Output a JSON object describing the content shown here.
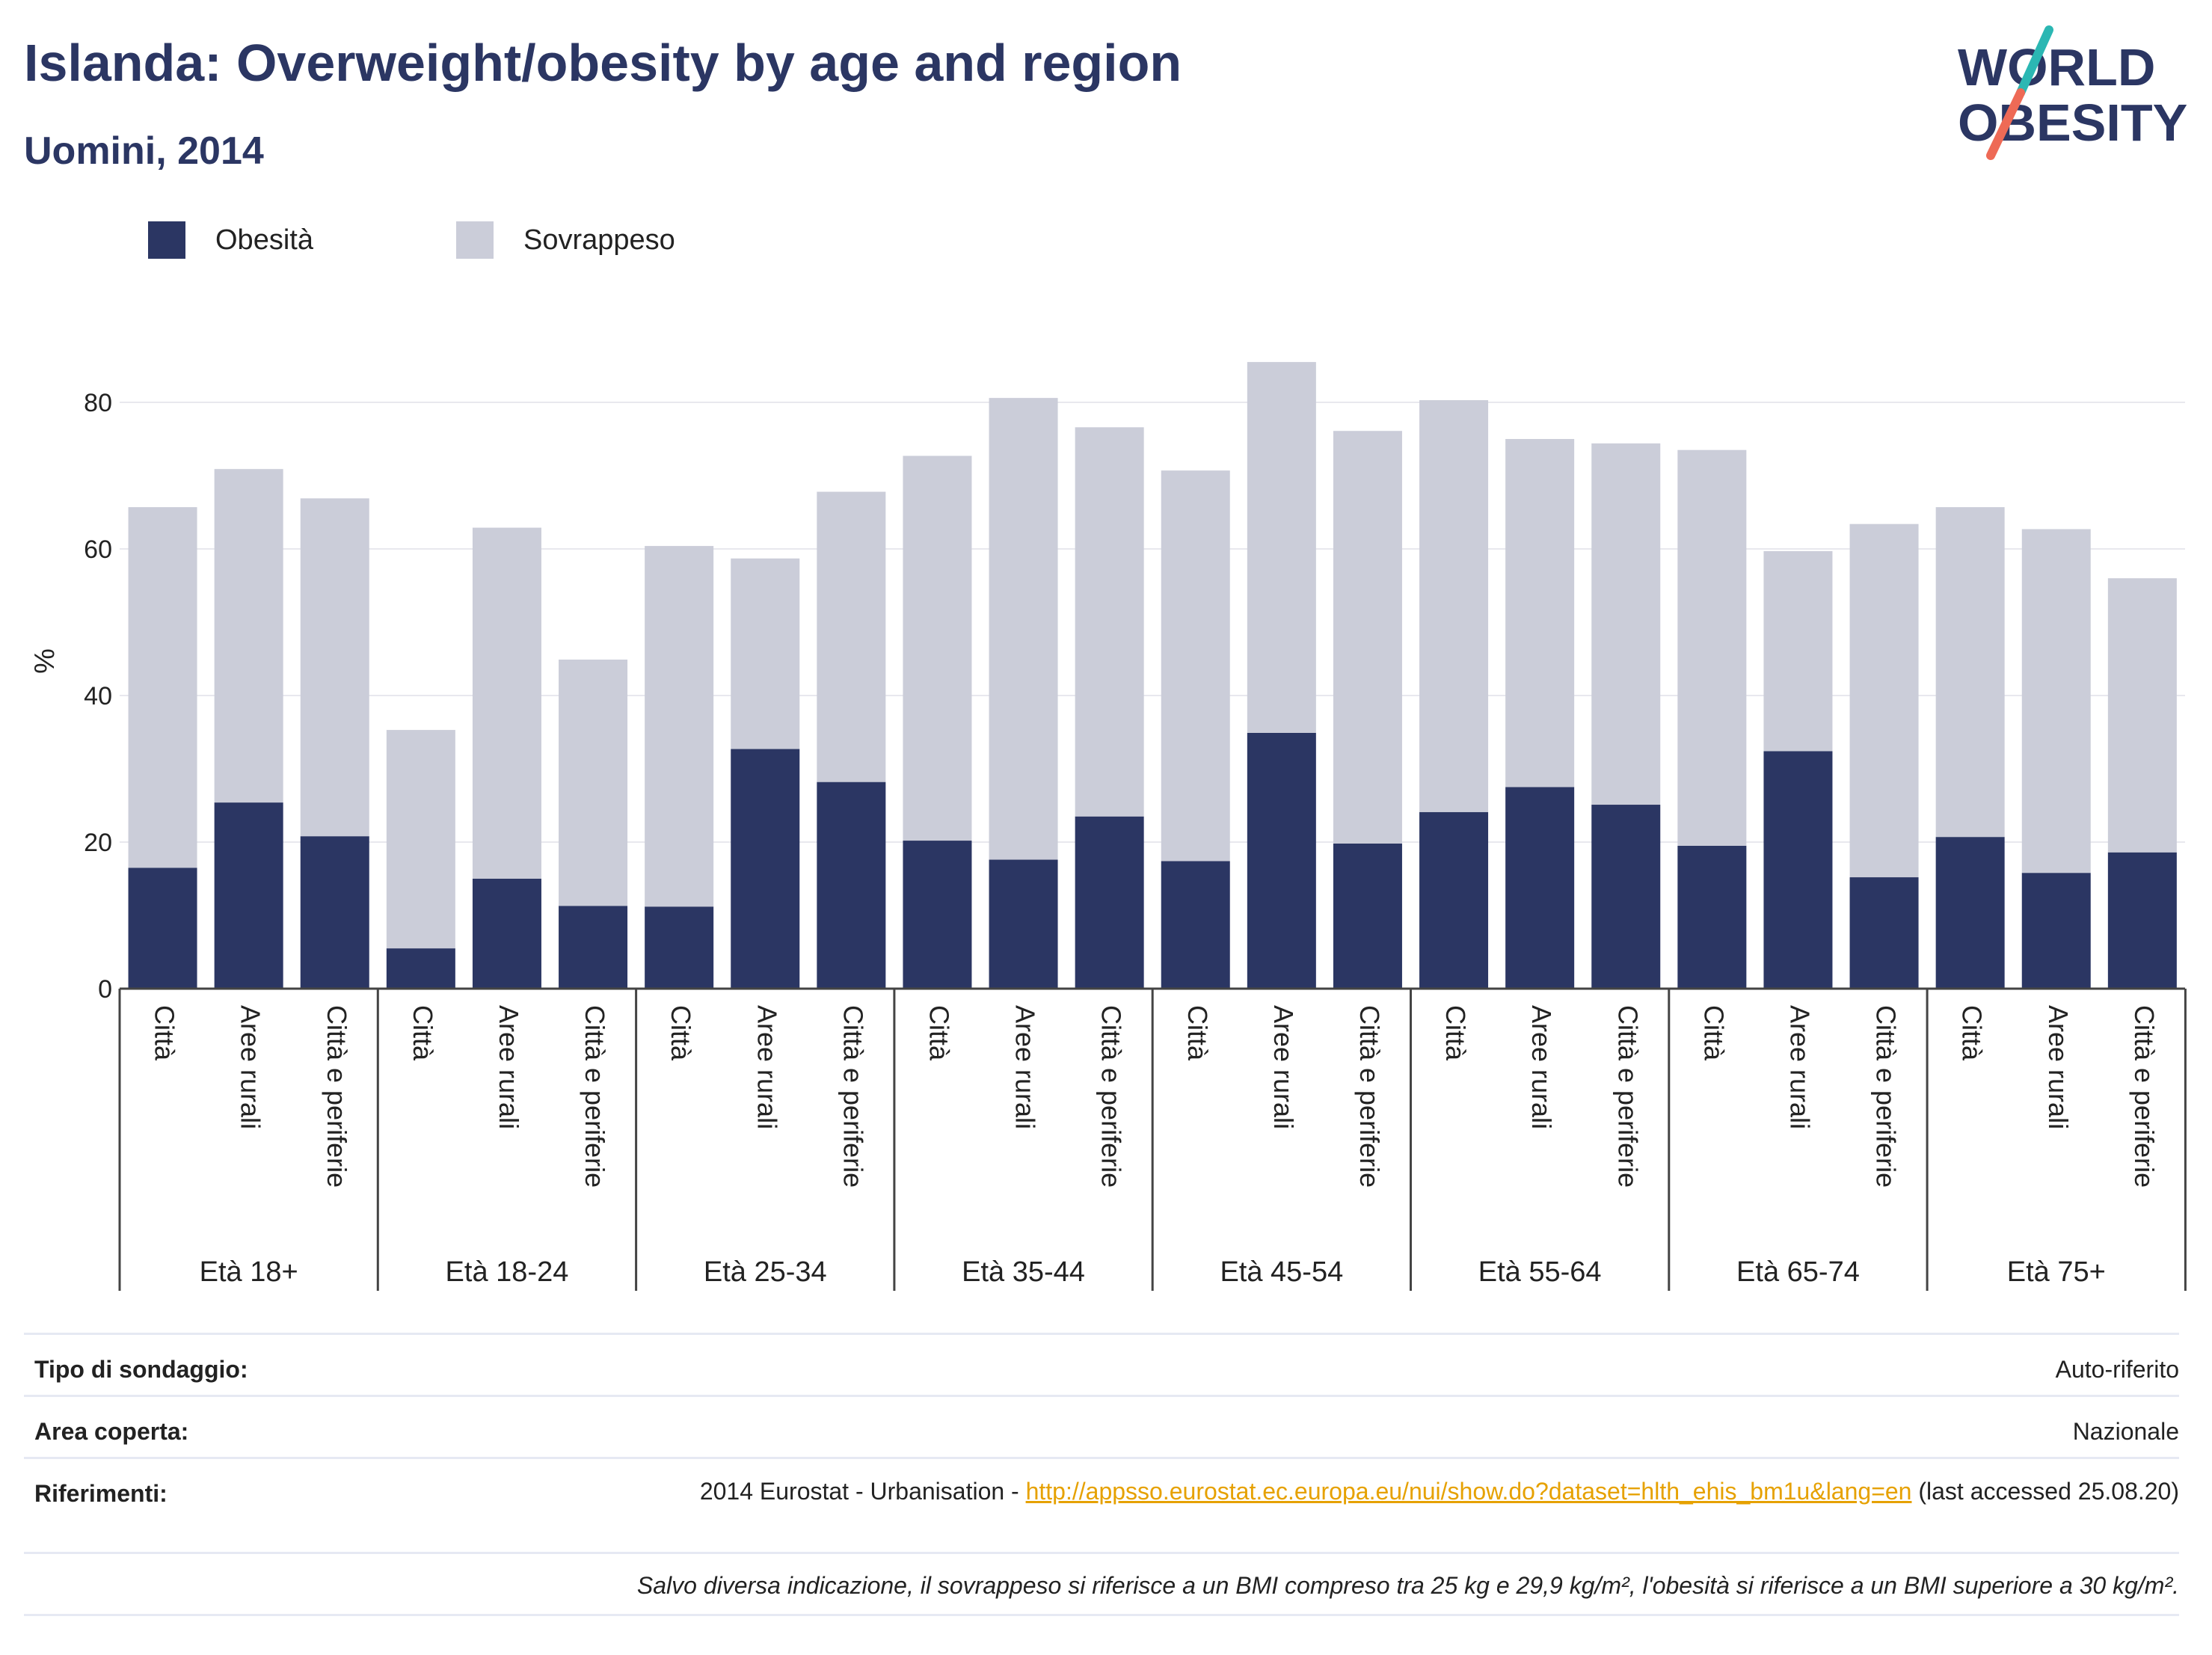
{
  "title": "Islanda: Overweight/obesity by age and region",
  "subtitle": "Uomini, 2014",
  "logo": {
    "line1": "WORLD",
    "line2": "OBESITY"
  },
  "legend": [
    {
      "label": "Obesità",
      "color": "#2b3663"
    },
    {
      "label": "Sovrappeso",
      "color": "#cbcdd9"
    }
  ],
  "chart_data": {
    "type": "bar",
    "stacked": true,
    "ylabel": "%",
    "ylim": [
      0,
      88
    ],
    "yticks": [
      0,
      20,
      40,
      60,
      80
    ],
    "grid": true,
    "legend_position": "top-left",
    "groups": [
      "Età 18+",
      "Età 18-24",
      "Età 25-34",
      "Età 35-44",
      "Età 45-54",
      "Età 55-64",
      "Età 65-74",
      "Età 75+"
    ],
    "subcategories": [
      "Città",
      "Aree rurali",
      "Città e periferie"
    ],
    "series": [
      {
        "name": "Obesità",
        "color": "#2b3663",
        "values": [
          16.5,
          25.4,
          20.8,
          5.5,
          15.0,
          11.3,
          11.2,
          32.7,
          28.2,
          20.2,
          17.6,
          23.5,
          17.4,
          34.9,
          19.8,
          24.1,
          27.5,
          25.1,
          19.5,
          32.4,
          15.2,
          20.7,
          15.8,
          18.6
        ]
      },
      {
        "name": "Sovrappeso",
        "color": "#cbcdd9",
        "values": [
          49.2,
          45.5,
          46.1,
          29.8,
          47.9,
          33.6,
          49.2,
          26.0,
          39.6,
          52.5,
          63.0,
          53.1,
          53.3,
          50.6,
          56.3,
          56.2,
          47.5,
          49.3,
          54.0,
          27.3,
          48.2,
          45.0,
          46.9,
          37.4
        ]
      }
    ]
  },
  "info": {
    "survey_label": "Tipo di sondaggio:",
    "survey_value": "Auto-riferito",
    "area_label": "Area coperta:",
    "area_value": "Nazionale",
    "refs_label": "Riferimenti:",
    "refs_prefix": "2014 Eurostat - Urbanisation - ",
    "refs_link": "http://appsso.eurostat.ec.europa.eu/nui/show.do?dataset=hlth_ehis_bm1u&lang=en",
    "refs_suffix": " (last accessed 25.08.20)",
    "note": "Salvo diversa indicazione, il sovrappeso si riferisce a un BMI compreso tra 25 kg e 29,9 kg/m², l'obesità si riferisce a un BMI superiore a 30 kg/m²."
  }
}
